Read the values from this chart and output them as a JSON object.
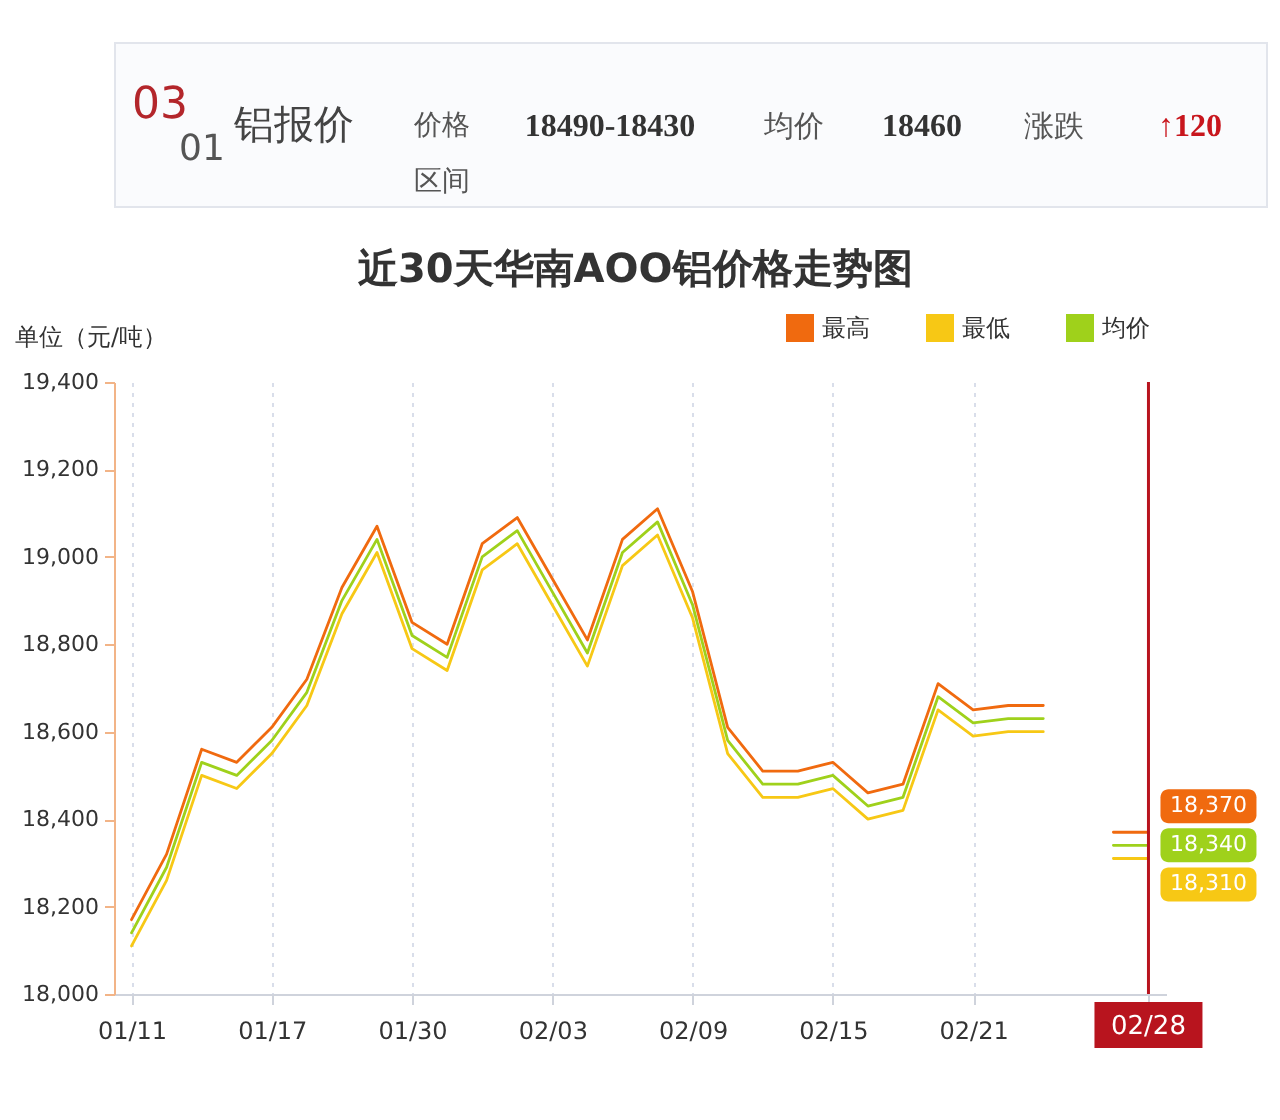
{
  "chart_data": {
    "type": "line",
    "title": "近30天华南AOO铝价格走势图",
    "ylabel": "单位（元/吨）",
    "annotations": [
      "03",
      "01",
      "铝报价",
      "价格区间",
      "18490-18430",
      "均价",
      "18460",
      "涨跌",
      "↑120"
    ],
    "categories": [
      "01/11",
      null,
      null,
      null,
      "01/17",
      null,
      null,
      null,
      "01/30",
      null,
      null,
      null,
      "02/03",
      null,
      null,
      null,
      "02/09",
      null,
      null,
      null,
      "02/15",
      null,
      null,
      null,
      "02/21",
      null,
      null,
      null,
      null,
      "02/28"
    ],
    "series": [
      {
        "name": "最高",
        "color": "#f06a0f",
        "values": [
          18170,
          18320,
          18560,
          18530,
          18610,
          18720,
          18930,
          19070,
          18850,
          18800,
          19030,
          19090,
          18950,
          18810,
          19040,
          19110,
          18920,
          18610,
          18510,
          18510,
          18530,
          18460,
          18480,
          18710,
          18650,
          18660,
          18660,
          null,
          18370,
          18370
        ],
        "value_labels": [
          null,
          null,
          null,
          null,
          null,
          null,
          null,
          null,
          null,
          null,
          null,
          null,
          null,
          null,
          null,
          null,
          null,
          null,
          null,
          null,
          null,
          null,
          null,
          null,
          null,
          null,
          null,
          null,
          null,
          "18,370"
        ]
      },
      {
        "name": "最低",
        "color": "#f7c815",
        "values": [
          18110,
          18260,
          18500,
          18470,
          18550,
          18660,
          18870,
          19010,
          18790,
          18740,
          18970,
          19030,
          18890,
          18750,
          18980,
          19050,
          18860,
          18550,
          18450,
          18450,
          18470,
          18400,
          18420,
          18650,
          18590,
          18600,
          18600,
          null,
          18310,
          18310
        ],
        "value_labels": [
          null,
          null,
          null,
          null,
          null,
          null,
          null,
          null,
          null,
          null,
          null,
          null,
          null,
          null,
          null,
          null,
          null,
          null,
          null,
          null,
          null,
          null,
          null,
          null,
          null,
          null,
          null,
          null,
          null,
          "18,310"
        ]
      },
      {
        "name": "均价",
        "color": "#9fd11b",
        "values": [
          18140,
          18290,
          18530,
          18500,
          18580,
          18690,
          18900,
          19040,
          18820,
          18770,
          19000,
          19060,
          18920,
          18780,
          19010,
          19080,
          18890,
          18580,
          18480,
          18480,
          18500,
          18430,
          18450,
          18680,
          18620,
          18630,
          18630,
          null,
          18340,
          18340
        ],
        "value_labels": [
          null,
          null,
          null,
          null,
          null,
          null,
          null,
          null,
          null,
          null,
          null,
          null,
          null,
          null,
          null,
          null,
          null,
          null,
          null,
          null,
          null,
          null,
          null,
          null,
          null,
          null,
          null,
          null,
          null,
          "18,340"
        ]
      }
    ],
    "ylim": [
      18000,
      19400
    ],
    "yticks": [
      {
        "value": 18000,
        "label": "18,000"
      },
      {
        "value": 18200,
        "label": "18,200"
      },
      {
        "value": 18400,
        "label": "18,400"
      },
      {
        "value": 18600,
        "label": "18,600"
      },
      {
        "value": 18800,
        "label": "18,800"
      },
      {
        "value": 19000,
        "label": "19,000"
      },
      {
        "value": 19200,
        "label": "19,200"
      },
      {
        "value": 19400,
        "label": "19,400"
      }
    ],
    "grid": "x",
    "legend": "top right",
    "ref_lines": [
      {
        "axis": "x",
        "value": "02/28",
        "color": "#b8141e"
      }
    ]
  }
}
